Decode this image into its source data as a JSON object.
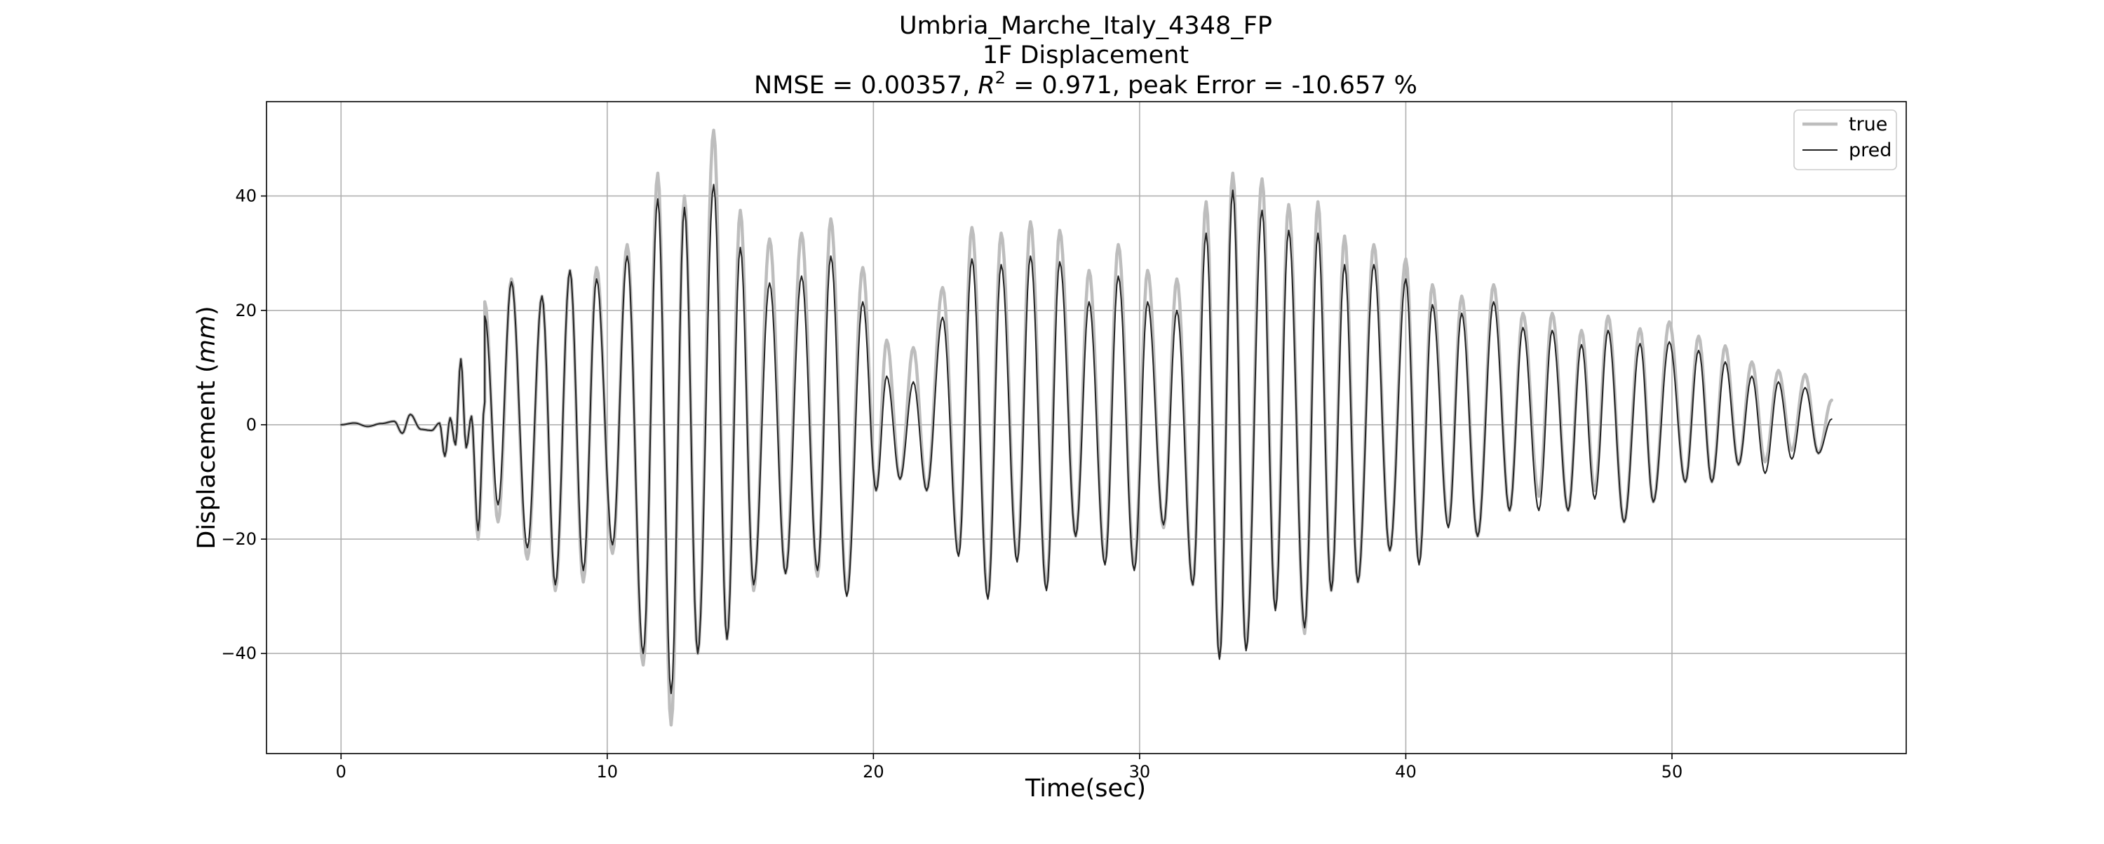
{
  "chart_data": {
    "type": "line",
    "title_lines": [
      "Umbria_Marche_Italy_4348_FP",
      "1F Displacement"
    ],
    "metrics": {
      "prefix": "NMSE = 0.00357, ",
      "r2_symbol": "R",
      "r2_exponent": "2",
      "suffix": " = 0.971, peak Error = -10.657 %"
    },
    "xlabel": "Time(sec)",
    "ylabel_main": "Displacement (",
    "ylabel_unit": "mm",
    "ylabel_close": ")",
    "xlim": [
      -2.8,
      58.8
    ],
    "ylim": [
      -57.5,
      56.5
    ],
    "xticks": [
      0,
      10,
      20,
      30,
      40,
      50
    ],
    "yticks": [
      -40,
      -20,
      0,
      20,
      40
    ],
    "grid": true,
    "legend_position": "top-right",
    "series": [
      {
        "name": "true",
        "color": "#bdbdbd",
        "keypoints": [
          [
            0,
            0
          ],
          [
            0.5,
            0.3
          ],
          [
            1,
            -0.3
          ],
          [
            1.5,
            0.2
          ],
          [
            2,
            0.6
          ],
          [
            2.3,
            -1.5
          ],
          [
            2.6,
            1.8
          ],
          [
            3,
            -0.8
          ],
          [
            3.4,
            -1.0
          ],
          [
            3.7,
            0.3
          ],
          [
            3.9,
            -5.5
          ],
          [
            4.1,
            1.2
          ],
          [
            4.3,
            -3.5
          ],
          [
            4.5,
            11.5
          ],
          [
            4.7,
            -4.0
          ],
          [
            4.9,
            1.5
          ],
          [
            5.15,
            -20.0
          ],
          [
            5.4,
            4.0
          ],
          [
            5.4,
            21.5
          ],
          [
            5.9,
            -17.0
          ],
          [
            6.4,
            25.5
          ],
          [
            7.0,
            -23.5
          ],
          [
            7.55,
            22.5
          ],
          [
            8.05,
            -29.0
          ],
          [
            8.6,
            27.0
          ],
          [
            9.1,
            -27.5
          ],
          [
            9.6,
            27.5
          ],
          [
            10.2,
            -22.5
          ],
          [
            10.75,
            31.5
          ],
          [
            11.35,
            -42.0
          ],
          [
            11.9,
            44.0
          ],
          [
            12.4,
            -52.5
          ],
          [
            12.9,
            40.0
          ],
          [
            13.4,
            -40.0
          ],
          [
            14.0,
            51.5
          ],
          [
            14.5,
            -37.5
          ],
          [
            15.0,
            37.5
          ],
          [
            15.5,
            -29.0
          ],
          [
            16.1,
            32.5
          ],
          [
            16.7,
            -26.0
          ],
          [
            17.3,
            33.5
          ],
          [
            17.9,
            -26.5
          ],
          [
            18.4,
            36.0
          ],
          [
            19.0,
            -29.5
          ],
          [
            19.6,
            27.5
          ],
          [
            20.1,
            -11.5
          ],
          [
            20.5,
            14.8
          ],
          [
            21.0,
            -9.5
          ],
          [
            21.5,
            13.5
          ],
          [
            22.0,
            -11.5
          ],
          [
            22.6,
            24.0
          ],
          [
            23.2,
            -22.5
          ],
          [
            23.7,
            34.5
          ],
          [
            24.3,
            -30.0
          ],
          [
            24.8,
            33.5
          ],
          [
            25.4,
            -23.5
          ],
          [
            25.9,
            35.5
          ],
          [
            26.5,
            -28.5
          ],
          [
            27.0,
            34.0
          ],
          [
            27.6,
            -19.5
          ],
          [
            28.1,
            27.0
          ],
          [
            28.7,
            -24.0
          ],
          [
            29.2,
            31.5
          ],
          [
            29.8,
            -25.0
          ],
          [
            30.3,
            27.0
          ],
          [
            30.9,
            -18.0
          ],
          [
            31.4,
            25.5
          ],
          [
            32.0,
            -28.0
          ],
          [
            32.5,
            39.0
          ],
          [
            33.0,
            -40.5
          ],
          [
            33.5,
            44.0
          ],
          [
            34.0,
            -39.0
          ],
          [
            34.6,
            43.0
          ],
          [
            35.1,
            -32.0
          ],
          [
            35.6,
            38.5
          ],
          [
            36.2,
            -36.5
          ],
          [
            36.7,
            39.0
          ],
          [
            37.2,
            -29.0
          ],
          [
            37.7,
            33.0
          ],
          [
            38.2,
            -27.5
          ],
          [
            38.8,
            31.5
          ],
          [
            39.4,
            -22.0
          ],
          [
            40.0,
            29.0
          ],
          [
            40.5,
            -24.0
          ],
          [
            41.0,
            24.5
          ],
          [
            41.6,
            -17.5
          ],
          [
            42.1,
            22.5
          ],
          [
            42.7,
            -19.5
          ],
          [
            43.3,
            24.5
          ],
          [
            43.9,
            -15.0
          ],
          [
            44.4,
            19.5
          ],
          [
            45.0,
            -12.5
          ],
          [
            45.5,
            19.5
          ],
          [
            46.1,
            -15.0
          ],
          [
            46.6,
            16.5
          ],
          [
            47.1,
            -11.5
          ],
          [
            47.6,
            19.0
          ],
          [
            48.2,
            -17.0
          ],
          [
            48.8,
            16.8
          ],
          [
            49.3,
            -13.5
          ],
          [
            49.9,
            18.0
          ],
          [
            50.5,
            -10.0
          ],
          [
            51.0,
            15.5
          ],
          [
            51.5,
            -10.0
          ],
          [
            52.0,
            13.8
          ],
          [
            52.5,
            -7.0
          ],
          [
            53.0,
            11.0
          ],
          [
            53.5,
            -6.5
          ],
          [
            54.0,
            9.5
          ],
          [
            54.5,
            -4.5
          ],
          [
            55.0,
            8.8
          ],
          [
            55.5,
            -5.0
          ],
          [
            56.0,
            4.3
          ]
        ]
      },
      {
        "name": "pred",
        "color": "#222222",
        "keypoints": [
          [
            0,
            0
          ],
          [
            0.5,
            0.3
          ],
          [
            1,
            -0.3
          ],
          [
            1.5,
            0.2
          ],
          [
            2,
            0.6
          ],
          [
            2.3,
            -1.5
          ],
          [
            2.6,
            1.8
          ],
          [
            3,
            -0.8
          ],
          [
            3.4,
            -1.0
          ],
          [
            3.7,
            0.3
          ],
          [
            3.9,
            -5.5
          ],
          [
            4.1,
            1.2
          ],
          [
            4.3,
            -3.5
          ],
          [
            4.5,
            11.5
          ],
          [
            4.7,
            -4.0
          ],
          [
            4.9,
            1.5
          ],
          [
            5.15,
            -18.5
          ],
          [
            5.4,
            4.0
          ],
          [
            5.4,
            19.0
          ],
          [
            5.9,
            -14.0
          ],
          [
            6.4,
            25.0
          ],
          [
            7.0,
            -21.5
          ],
          [
            7.55,
            22.5
          ],
          [
            8.05,
            -28.0
          ],
          [
            8.6,
            27.0
          ],
          [
            9.1,
            -25.5
          ],
          [
            9.6,
            25.5
          ],
          [
            10.2,
            -21.0
          ],
          [
            10.75,
            29.5
          ],
          [
            11.35,
            -40.0
          ],
          [
            11.9,
            39.5
          ],
          [
            12.4,
            -47.0
          ],
          [
            12.9,
            38.0
          ],
          [
            13.4,
            -40.0
          ],
          [
            14.0,
            42.0
          ],
          [
            14.5,
            -37.5
          ],
          [
            15.0,
            31.0
          ],
          [
            15.5,
            -28.0
          ],
          [
            16.1,
            24.8
          ],
          [
            16.7,
            -26.0
          ],
          [
            17.3,
            26.0
          ],
          [
            17.9,
            -25.5
          ],
          [
            18.4,
            29.5
          ],
          [
            19.0,
            -30.0
          ],
          [
            19.6,
            21.5
          ],
          [
            20.1,
            -11.5
          ],
          [
            20.5,
            8.5
          ],
          [
            21.0,
            -9.5
          ],
          [
            21.5,
            7.5
          ],
          [
            22.0,
            -11.5
          ],
          [
            22.6,
            18.8
          ],
          [
            23.2,
            -23.0
          ],
          [
            23.7,
            29.0
          ],
          [
            24.3,
            -30.5
          ],
          [
            24.8,
            28.0
          ],
          [
            25.4,
            -24.0
          ],
          [
            25.9,
            29.5
          ],
          [
            26.5,
            -29.0
          ],
          [
            27.0,
            28.5
          ],
          [
            27.6,
            -19.5
          ],
          [
            28.1,
            21.5
          ],
          [
            28.7,
            -24.5
          ],
          [
            29.2,
            26.0
          ],
          [
            29.8,
            -25.5
          ],
          [
            30.3,
            21.5
          ],
          [
            30.9,
            -17.5
          ],
          [
            31.4,
            20.0
          ],
          [
            32.0,
            -28.0
          ],
          [
            32.5,
            33.5
          ],
          [
            33.0,
            -41.0
          ],
          [
            33.5,
            41.0
          ],
          [
            34.0,
            -39.5
          ],
          [
            34.6,
            37.5
          ],
          [
            35.1,
            -32.5
          ],
          [
            35.6,
            34.0
          ],
          [
            36.2,
            -35.5
          ],
          [
            36.7,
            33.5
          ],
          [
            37.2,
            -29.0
          ],
          [
            37.7,
            28.0
          ],
          [
            38.2,
            -27.5
          ],
          [
            38.8,
            28.0
          ],
          [
            39.4,
            -22.0
          ],
          [
            40.0,
            25.5
          ],
          [
            40.5,
            -24.5
          ],
          [
            41.0,
            21.0
          ],
          [
            41.6,
            -18.0
          ],
          [
            42.1,
            19.5
          ],
          [
            42.7,
            -19.5
          ],
          [
            43.3,
            21.5
          ],
          [
            43.9,
            -15.0
          ],
          [
            44.4,
            17.0
          ],
          [
            45.0,
            -15.0
          ],
          [
            45.5,
            16.5
          ],
          [
            46.1,
            -15.0
          ],
          [
            46.6,
            14.0
          ],
          [
            47.1,
            -13.0
          ],
          [
            47.6,
            16.5
          ],
          [
            48.2,
            -17.0
          ],
          [
            48.8,
            14.2
          ],
          [
            49.3,
            -13.5
          ],
          [
            49.9,
            14.5
          ],
          [
            50.5,
            -10.0
          ],
          [
            51.0,
            13.0
          ],
          [
            51.5,
            -10.0
          ],
          [
            52.0,
            11.0
          ],
          [
            52.5,
            -7.0
          ],
          [
            53.0,
            8.5
          ],
          [
            53.5,
            -8.5
          ],
          [
            54.0,
            7.5
          ],
          [
            54.5,
            -6.0
          ],
          [
            55.0,
            6.5
          ],
          [
            55.5,
            -5.0
          ],
          [
            56.0,
            1.0
          ]
        ]
      }
    ]
  }
}
